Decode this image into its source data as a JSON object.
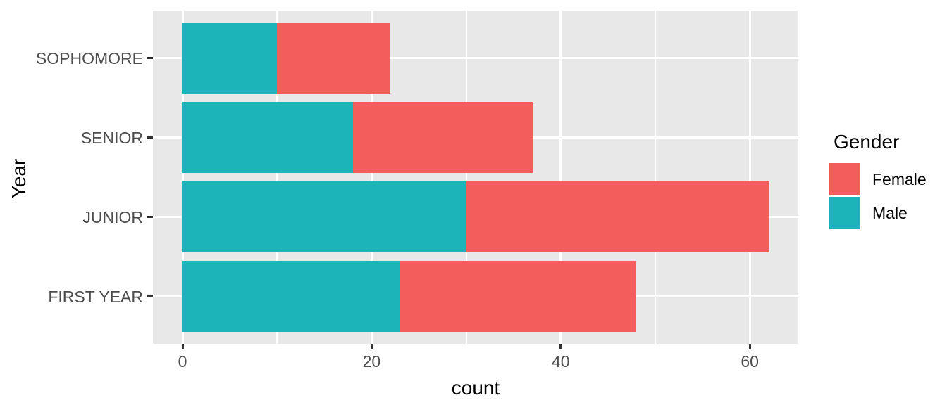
{
  "chart_data": {
    "type": "bar",
    "orientation": "horizontal",
    "stacked": true,
    "xlabel": "count",
    "ylabel": "Year",
    "categories_top_to_bottom": [
      "SOPHOMORE",
      "SENIOR",
      "JUNIOR",
      "FIRST YEAR"
    ],
    "series": [
      {
        "name": "Male",
        "color": "#1cb3b9",
        "values": [
          10,
          18,
          30,
          23
        ]
      },
      {
        "name": "Female",
        "color": "#f35e5c",
        "values": [
          12,
          19,
          32,
          25
        ]
      }
    ],
    "stack_totals": [
      22,
      37,
      62,
      48
    ],
    "x_ticks": [
      0,
      20,
      40,
      60
    ],
    "x_minor_gridlines": [
      10,
      30,
      50
    ],
    "xlim": [
      -3.1,
      65.2
    ],
    "grid": "on",
    "panel_bg": "#e8e8e8",
    "gridline_color": "#ffffff",
    "legend": {
      "title": "Gender",
      "position": "right",
      "entries": [
        {
          "label": "Female",
          "color": "#f35e5c"
        },
        {
          "label": "Male",
          "color": "#1cb3b9"
        }
      ]
    }
  }
}
